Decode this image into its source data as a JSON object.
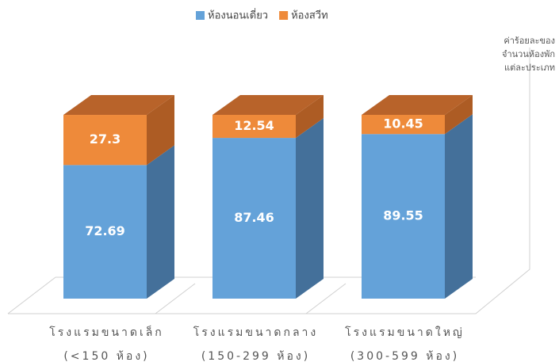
{
  "chart_data": {
    "type": "bar3d_stacked",
    "categories": [
      [
        "โรงแรมขนาดเล็ก",
        "(<150 ห้อง)"
      ],
      [
        "โรงแรมขนาดกลาง",
        "(150-299 ห้อง)"
      ],
      [
        "โรงแรมขนาดใหญ่",
        "(300-599 ห้อง)"
      ]
    ],
    "series": [
      {
        "name": "ห้องนอนเดี่ยว",
        "color": "#64a2d9",
        "side_color": "#44709a",
        "values": [
          72.69,
          87.46,
          89.55
        ]
      },
      {
        "name": "ห้องสวีท",
        "color": "#ee8a3a",
        "side_color": "#ad5c24",
        "top_color": "#b8632a",
        "values": [
          27.3,
          12.54,
          10.45
        ]
      }
    ],
    "y_label": [
      "ค่าร้อยละของ",
      "จำนวนห้องพัก",
      "แต่ละประเภท"
    ],
    "ylim": [
      0,
      100
    ],
    "legend": "top"
  }
}
